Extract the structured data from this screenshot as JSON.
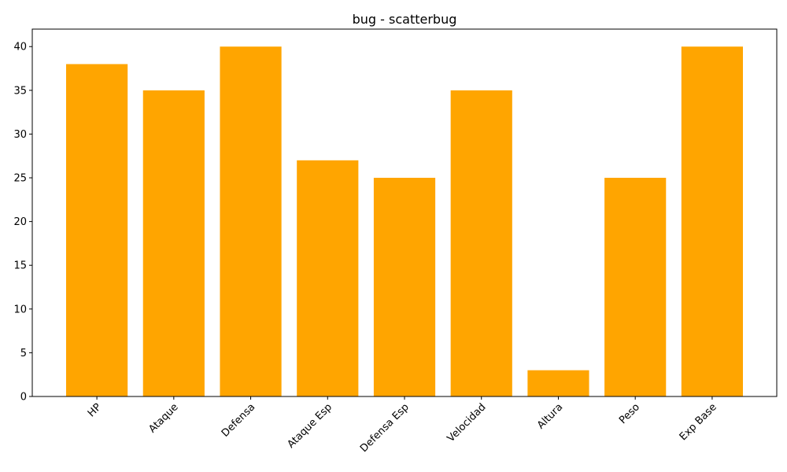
{
  "chart_data": {
    "type": "bar",
    "title": "bug - scatterbug",
    "xlabel": "",
    "ylabel": "",
    "categories": [
      "HP",
      "Ataque",
      "Defensa",
      "Ataque Esp",
      "Defensa Esp",
      "Velocidad",
      "Altura",
      "Peso",
      "Exp Base"
    ],
    "values": [
      38,
      35,
      40,
      27,
      25,
      35,
      3,
      25,
      40
    ],
    "ylim": [
      0,
      42
    ],
    "yticks": [
      0,
      5,
      10,
      15,
      20,
      25,
      30,
      35,
      40
    ],
    "bar_color": "#FFA500",
    "grid": false,
    "x_tick_rotation": 45
  }
}
